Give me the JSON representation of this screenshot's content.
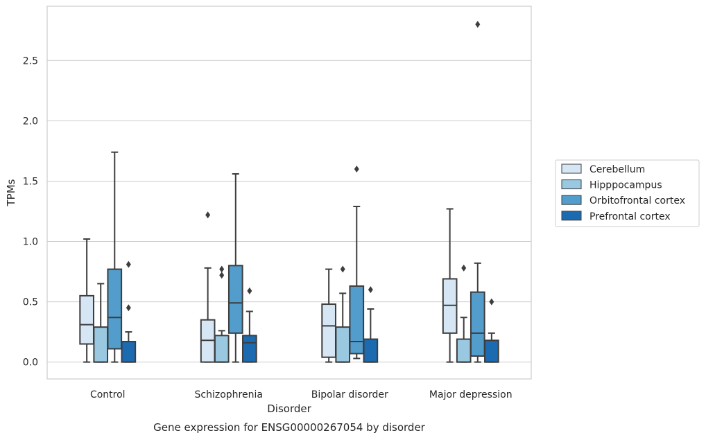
{
  "chart_data": {
    "type": "box",
    "xlabel": "Disorder",
    "ylabel": "TPMs",
    "caption": "Gene expression for ENSG00000267054 by disorder",
    "ylim": [
      -0.14,
      2.95
    ],
    "yticks": [
      "0.0",
      "0.5",
      "1.0",
      "1.5",
      "2.0",
      "2.5"
    ],
    "ytick_values": [
      0.0,
      0.5,
      1.0,
      1.5,
      2.0,
      2.5
    ],
    "grid": true,
    "legend_position": "right",
    "categories": [
      "Control",
      "Schizophrenia",
      "Bipolar disorder",
      "Major depression"
    ],
    "series": [
      {
        "name": "Cerebellum",
        "color": "#d6e6f4",
        "boxes": [
          {
            "whislo": 0.0,
            "q1": 0.15,
            "median": 0.31,
            "q3": 0.55,
            "whishi": 1.02,
            "fliers": []
          },
          {
            "whislo": 0.0,
            "q1": 0.0,
            "median": 0.18,
            "q3": 0.35,
            "whishi": 0.78,
            "fliers": [
              1.22
            ]
          },
          {
            "whislo": 0.0,
            "q1": 0.04,
            "median": 0.3,
            "q3": 0.48,
            "whishi": 0.77,
            "fliers": []
          },
          {
            "whislo": 0.0,
            "q1": 0.24,
            "median": 0.47,
            "q3": 0.69,
            "whishi": 1.27,
            "fliers": []
          }
        ]
      },
      {
        "name": "Hipppocampus",
        "color": "#9ac8e0",
        "boxes": [
          {
            "whislo": 0.0,
            "q1": 0.0,
            "median": 0.0,
            "q3": 0.29,
            "whishi": 0.65,
            "fliers": []
          },
          {
            "whislo": 0.0,
            "q1": 0.0,
            "median": 0.0,
            "q3": 0.22,
            "whishi": 0.26,
            "fliers": [
              0.72,
              0.77
            ]
          },
          {
            "whislo": 0.0,
            "q1": 0.0,
            "median": 0.0,
            "q3": 0.29,
            "whishi": 0.57,
            "fliers": [
              0.77
            ]
          },
          {
            "whislo": 0.0,
            "q1": 0.0,
            "median": 0.0,
            "q3": 0.19,
            "whishi": 0.37,
            "fliers": [
              0.78
            ]
          }
        ]
      },
      {
        "name": "Orbitofrontal cortex",
        "color": "#529dcc",
        "boxes": [
          {
            "whislo": 0.0,
            "q1": 0.11,
            "median": 0.37,
            "q3": 0.77,
            "whishi": 1.74,
            "fliers": []
          },
          {
            "whislo": 0.0,
            "q1": 0.24,
            "median": 0.49,
            "q3": 0.8,
            "whishi": 1.56,
            "fliers": []
          },
          {
            "whislo": 0.03,
            "q1": 0.07,
            "median": 0.17,
            "q3": 0.63,
            "whishi": 1.29,
            "fliers": [
              1.6
            ]
          },
          {
            "whislo": 0.0,
            "q1": 0.05,
            "median": 0.24,
            "q3": 0.58,
            "whishi": 0.82,
            "fliers": [
              2.8
            ]
          }
        ]
      },
      {
        "name": "Prefrontal cortex",
        "color": "#1c6aaf",
        "boxes": [
          {
            "whislo": 0.0,
            "q1": 0.0,
            "median": 0.0,
            "q3": 0.17,
            "whishi": 0.25,
            "fliers": [
              0.45,
              0.81
            ]
          },
          {
            "whislo": 0.0,
            "q1": 0.0,
            "median": 0.16,
            "q3": 0.22,
            "whishi": 0.42,
            "fliers": [
              0.59
            ]
          },
          {
            "whislo": 0.0,
            "q1": 0.0,
            "median": 0.0,
            "q3": 0.19,
            "whishi": 0.44,
            "fliers": [
              0.6
            ]
          },
          {
            "whislo": 0.0,
            "q1": 0.0,
            "median": 0.0,
            "q3": 0.18,
            "whishi": 0.24,
            "fliers": [
              0.5
            ]
          }
        ]
      }
    ]
  }
}
